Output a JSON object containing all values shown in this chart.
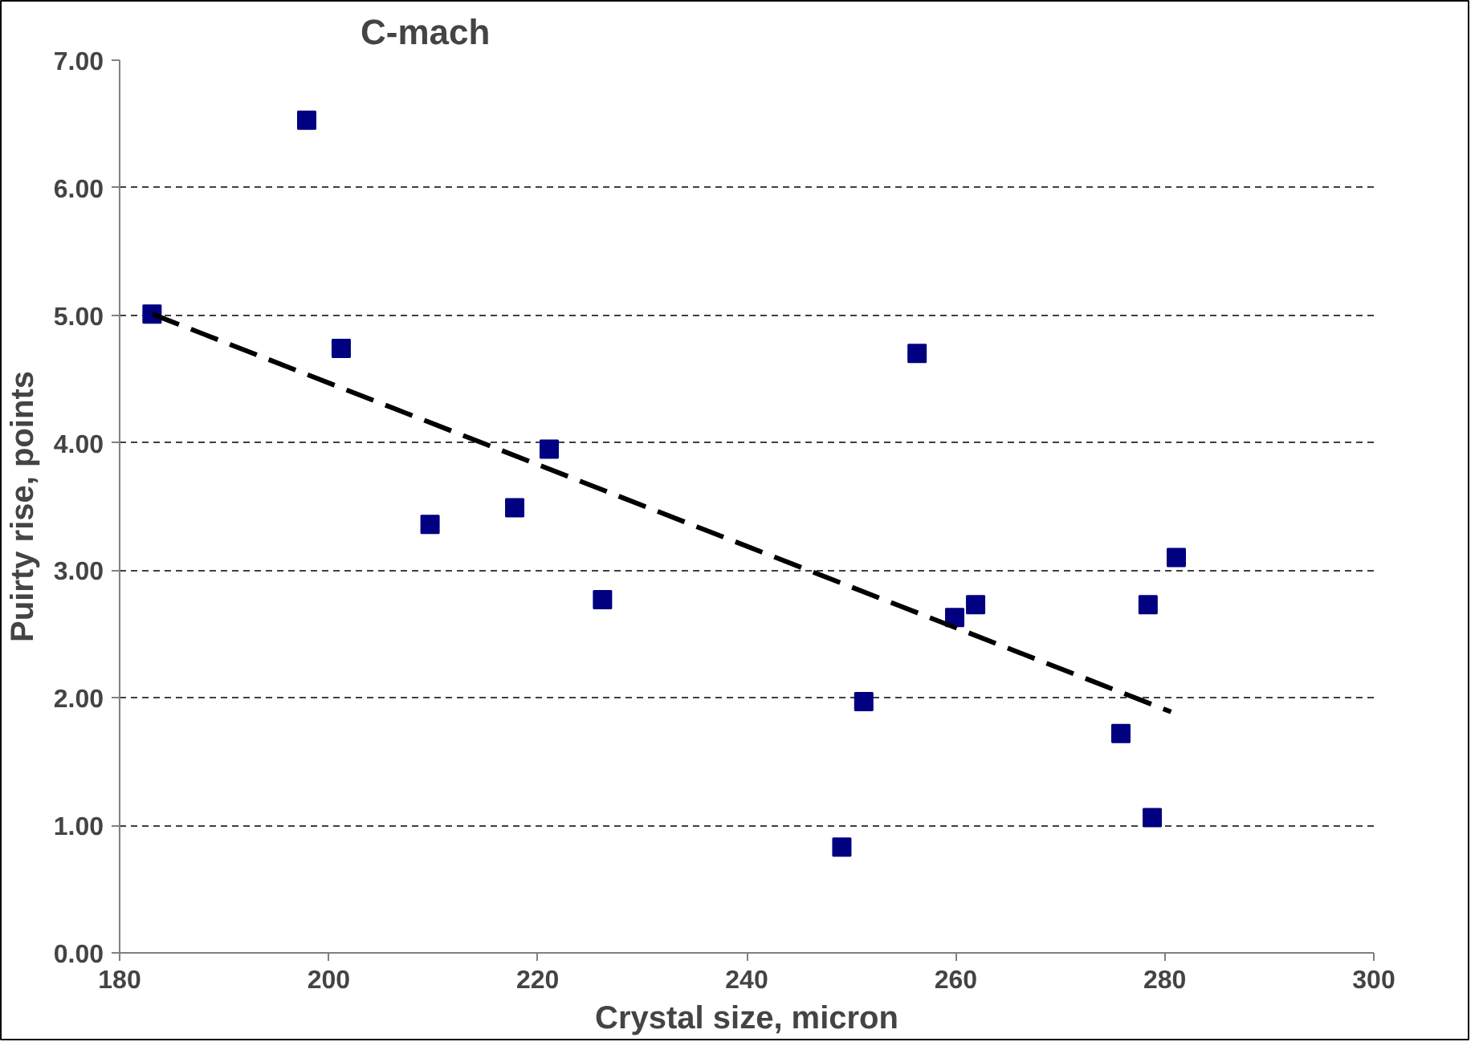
{
  "chart_data": {
    "type": "scatter",
    "title": "C-mach",
    "xlabel": "Crystal size, micron",
    "ylabel": "Puirty rise, points",
    "xlim": [
      180,
      300
    ],
    "xticks": [
      180,
      200,
      220,
      240,
      260,
      280,
      300
    ],
    "ylim": [
      0,
      7
    ],
    "yticks": [
      {
        "value": 0,
        "label": "0.00"
      },
      {
        "value": 1,
        "label": "1.00"
      },
      {
        "value": 2,
        "label": "2.00"
      },
      {
        "value": 3,
        "label": "3.00"
      },
      {
        "value": 4,
        "label": "4.00"
      },
      {
        "value": 5,
        "label": "5.00"
      },
      {
        "value": 6,
        "label": "6.00"
      },
      {
        "value": 7,
        "label": "7.00"
      }
    ],
    "grid": "y",
    "marker": "square",
    "series": [
      {
        "color": "#000080",
        "x": [
          183.1,
          197.9,
          201.2,
          209.7,
          217.8,
          221.1,
          226.2,
          249.1,
          251.2,
          256.3,
          259.9,
          261.9,
          275.8,
          278.4,
          278.8,
          281.1
        ],
        "values": [
          5.01,
          6.53,
          4.74,
          3.36,
          3.49,
          3.95,
          2.77,
          0.83,
          1.97,
          4.7,
          2.63,
          2.73,
          1.72,
          2.73,
          1.06,
          3.1
        ]
      },
      {
        "type": "line",
        "color": "#000000",
        "line_style": "dashed",
        "marker": "none",
        "x": [
          183.1,
          280.6
        ],
        "values": [
          5.01,
          1.89
        ]
      }
    ]
  }
}
